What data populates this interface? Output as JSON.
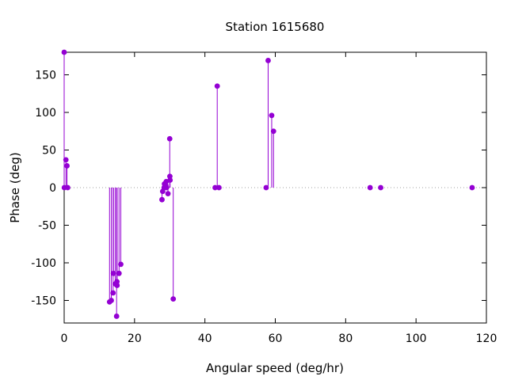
{
  "chart_data": {
    "type": "scatter",
    "style": "impulses-with-points",
    "title": "Station 1615680",
    "xlabel": "Angular speed (deg/hr)",
    "ylabel": "Phase (deg)",
    "xlim": [
      0,
      120
    ],
    "ylim": [
      -180,
      180
    ],
    "xticks": [
      0,
      20,
      40,
      60,
      80,
      100,
      120
    ],
    "yticks": [
      -150,
      -100,
      -50,
      0,
      50,
      100,
      150
    ],
    "zero_line": "dotted",
    "grid": false,
    "color": "#9400d3",
    "series": [
      {
        "x": [
          0.0,
          0.04,
          0.5,
          0.8,
          1.0,
          12.9,
          13.4,
          13.9,
          14.0,
          14.5,
          14.9,
          15.0,
          15.04,
          15.6,
          16.1,
          27.8,
          28.0,
          28.4,
          28.5,
          28.9,
          29.0,
          29.1,
          29.5,
          30.0,
          30.04,
          30.1,
          31.0,
          42.9,
          43.5,
          44.0,
          57.4,
          57.97,
          58.98,
          59.5,
          86.95,
          89.96,
          115.94
        ],
        "y": [
          180,
          0,
          37,
          29,
          0,
          -152,
          -150,
          -140,
          -114,
          -128,
          -171,
          -125,
          -130,
          -114,
          -102,
          -16,
          -5,
          0,
          5,
          3,
          8,
          0,
          -8,
          65,
          15,
          10,
          -148,
          0,
          135,
          0,
          0,
          169,
          96,
          75,
          0,
          0,
          0
        ]
      }
    ]
  }
}
